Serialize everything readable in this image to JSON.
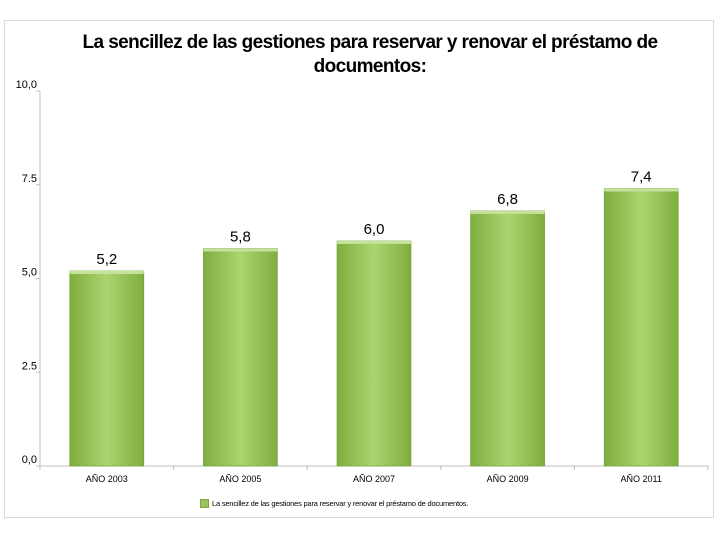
{
  "colors": {
    "bar_top": "#8dbb4c",
    "bar_mid": "#a6d06a",
    "bar_edge": "#6d9a2f",
    "bar_cap": "#c5e29a"
  },
  "chart_data": {
    "type": "bar",
    "title": "La sencillez de las gestiones para reservar y renovar el préstamo de documentos:",
    "categories": [
      "AÑO 2003",
      "AÑO 2005",
      "AÑO 2007",
      "AÑO 2009",
      "AÑO 2011"
    ],
    "series": [
      {
        "name": "La sencillez de las gestiones para reservar y renovar el préstamo de documentos.",
        "values": [
          5.2,
          5.8,
          6.0,
          6.8,
          7.4
        ]
      }
    ],
    "value_labels": [
      "5,2",
      "5,8",
      "6,0",
      "6,8",
      "7,4"
    ],
    "y_ticks": [
      "0,0",
      "2.5",
      "5,0",
      "7.5",
      "10,0"
    ],
    "y_tick_values": [
      0,
      2.5,
      5,
      7.5,
      10
    ],
    "ylim": [
      0,
      10
    ],
    "xlabel": "",
    "ylabel": "",
    "grid": false,
    "legend_position": "bottom"
  }
}
